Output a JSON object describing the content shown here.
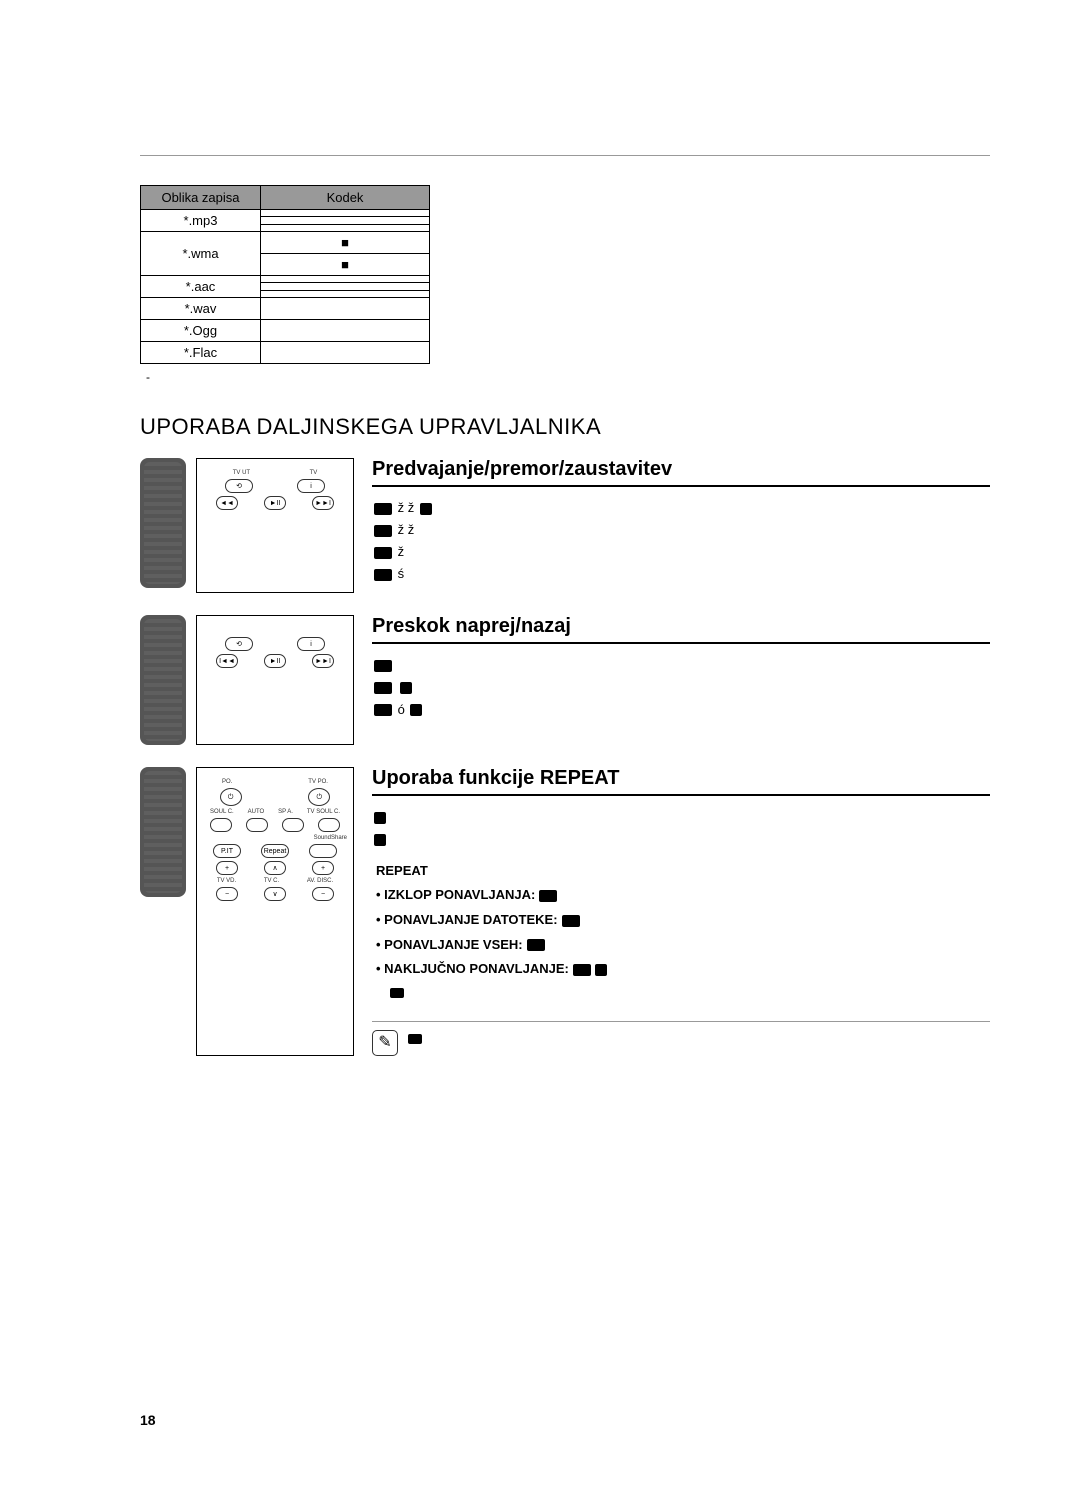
{
  "intro_lines": [
    "",
    "",
    "",
    "",
    "",
    "",
    "",
    "",
    "",
    "",
    ""
  ],
  "table": {
    "headers": [
      "Oblika zapisa",
      "Kodek"
    ],
    "rows": [
      {
        "fmt": "*.mp3",
        "codecs": [
          "",
          "",
          ""
        ]
      },
      {
        "fmt": "*.wma",
        "codecs": [
          "■",
          "■"
        ]
      },
      {
        "fmt": "*.aac",
        "codecs": [
          "",
          "",
          ""
        ]
      },
      {
        "fmt": "*.wav",
        "codecs": [
          ""
        ]
      },
      {
        "fmt": "*.Ogg",
        "codecs": [
          ""
        ]
      },
      {
        "fmt": "*.Flac",
        "codecs": [
          ""
        ]
      }
    ]
  },
  "codec_note": "",
  "section_title": "UPORABA DALJINSKEGA UPRAVLJALNIKA",
  "sub1": {
    "title": "Predvajanje/premor/zaustavitev",
    "lines": [
      "",
      "",
      "",
      ""
    ],
    "remote_labels": {
      "a": "TV UT",
      "b": "TV"
    }
  },
  "sub2": {
    "title": "Preskok naprej/nazaj",
    "lines": [
      "",
      "",
      "",
      ""
    ]
  },
  "sub3": {
    "title": "Uporaba funkcije REPEAT",
    "intro": [
      "",
      ""
    ],
    "header": "REPEAT",
    "items": [
      {
        "label": "IZKLOP PONAVLJANJA:",
        "icon": 1
      },
      {
        "label": "PONAVLJANJE DATOTEKE:",
        "icon": 1
      },
      {
        "label": "PONAVLJANJE VSEH:",
        "icon": 1
      },
      {
        "label": "NAKLJUČNO PONAVLJANJE:",
        "icon": 2,
        "suffix": ""
      }
    ],
    "note": [
      "",
      ""
    ],
    "remote_labels": {
      "po": "PO.",
      "tvpo": "TV PO.",
      "auto": "AUTO",
      "soulc": "SOUL C.",
      "po2": "PO.",
      "spa": "SP A.",
      "tvsoulc": "TV SOUL C.",
      "soundshare": "SoundShare",
      "pt": "P.IT",
      "repeat": "Repeat",
      "tvvd": "TV VD.",
      "tvc": "TV C.",
      "avdisc": "AV. DISC."
    }
  },
  "page_number": "18"
}
